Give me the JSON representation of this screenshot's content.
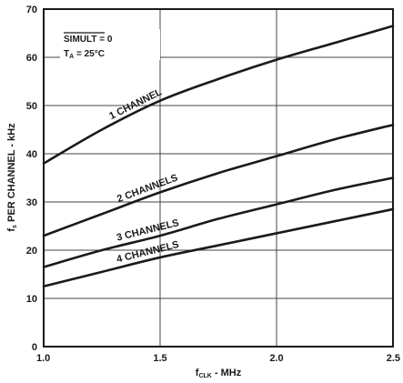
{
  "chart_data": {
    "type": "line",
    "title": "",
    "xlabel": "f",
    "xlabel_sub": "CLK",
    "xlabel_suffix": " - MHz",
    "ylabel": "f",
    "ylabel_sub": "s",
    "ylabel_suffix": " PER CHANNEL - kHz",
    "xlim": [
      1.0,
      2.5
    ],
    "ylim": [
      0,
      70
    ],
    "xticks": [
      1.0,
      1.5,
      2.0,
      2.5
    ],
    "xtick_labels": [
      "1.0",
      "1.5",
      "2.0",
      "2.5"
    ],
    "yticks": [
      0,
      10,
      20,
      30,
      40,
      50,
      60,
      70
    ],
    "ytick_labels": [
      "0",
      "10",
      "20",
      "30",
      "40",
      "50",
      "60",
      "70"
    ],
    "grid": true,
    "annotation": {
      "simult_label": "SIMULT",
      "simult_value": " = 0",
      "ta_label": "T",
      "ta_sub": "A",
      "ta_value": " = 25°C"
    },
    "series": [
      {
        "name": "1 CHANNEL",
        "x": [
          1.0,
          1.25,
          1.5,
          1.75,
          2.0,
          2.25,
          2.5
        ],
        "y": [
          38,
          45,
          51,
          55.5,
          59.5,
          63,
          66.5
        ]
      },
      {
        "name": "2 CHANNELS",
        "x": [
          1.0,
          1.25,
          1.5,
          1.75,
          2.0,
          2.25,
          2.5
        ],
        "y": [
          23,
          27.5,
          32,
          36,
          39.5,
          43,
          46
        ]
      },
      {
        "name": "3 CHANNELS",
        "x": [
          1.0,
          1.25,
          1.5,
          1.75,
          2.0,
          2.25,
          2.5
        ],
        "y": [
          16.5,
          20,
          23,
          26.5,
          29.5,
          32.5,
          35
        ]
      },
      {
        "name": "4 CHANNELS",
        "x": [
          1.0,
          1.25,
          1.5,
          1.75,
          2.0,
          2.25,
          2.5
        ],
        "y": [
          12.5,
          15.5,
          18.5,
          21,
          23.5,
          26,
          28.5
        ]
      }
    ]
  }
}
